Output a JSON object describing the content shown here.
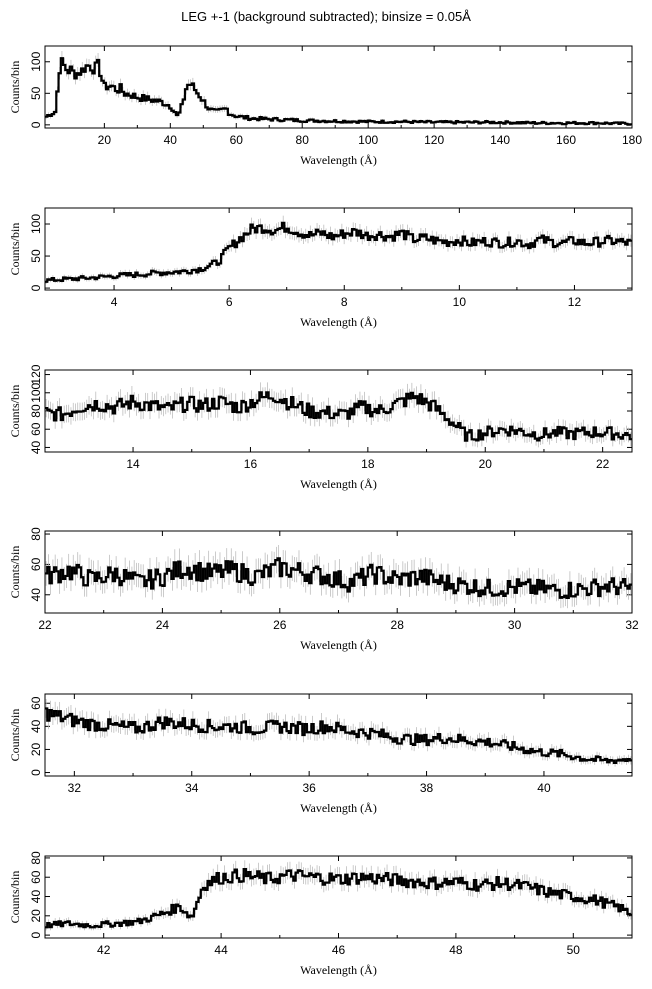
{
  "title": "LEG +-1 (background subtracted); binsize = 0.05Å",
  "chart_data": [
    {
      "type": "line",
      "xlabel": "Wavelength (Å)",
      "ylabel": "Counts/bin",
      "xlim": [
        2,
        180
      ],
      "ylim": [
        -5,
        125
      ],
      "xticks": [
        20,
        40,
        60,
        80,
        100,
        120,
        140,
        160,
        180
      ],
      "yticks": [
        0,
        50,
        100
      ],
      "series": [
        {
          "x": [
            2,
            4,
            5.5,
            6,
            7,
            8,
            9,
            10,
            11,
            12,
            13,
            14,
            15,
            16,
            17,
            18,
            19,
            20,
            22,
            24,
            25,
            26,
            28,
            30,
            32,
            34,
            36,
            38,
            40,
            41,
            42,
            43,
            44,
            45,
            46,
            47,
            48,
            49,
            50,
            52,
            54,
            55,
            56,
            57,
            58,
            60,
            62,
            65,
            70,
            75,
            80,
            90,
            100,
            110,
            120,
            130,
            140,
            150,
            160,
            170,
            175,
            178,
            180
          ],
          "y": [
            12,
            18,
            22,
            80,
            100,
            92,
            85,
            88,
            80,
            82,
            85,
            90,
            95,
            92,
            88,
            96,
            80,
            60,
            62,
            55,
            58,
            50,
            48,
            44,
            42,
            40,
            38,
            35,
            30,
            25,
            14,
            20,
            40,
            62,
            65,
            60,
            52,
            46,
            38,
            24,
            20,
            22,
            24,
            26,
            18,
            14,
            12,
            10,
            9,
            8,
            7,
            6,
            5,
            5,
            4,
            4,
            4,
            3,
            3,
            3,
            2,
            2,
            2
          ]
        }
      ]
    },
    {
      "type": "line",
      "xlabel": "Wavelength (Å)",
      "ylabel": "Counts/bin",
      "xlim": [
        2.8,
        13
      ],
      "ylim": [
        -3,
        125
      ],
      "xticks": [
        4,
        6,
        8,
        10,
        12
      ],
      "yticks": [
        0,
        50,
        100
      ],
      "series": [
        {
          "x": [
            2.8,
            3.2,
            3.6,
            4.0,
            4.4,
            4.8,
            5.2,
            5.5,
            5.8,
            6.0,
            6.2,
            6.4,
            6.6,
            6.8,
            7.0,
            7.2,
            7.4,
            7.6,
            7.8,
            8.0,
            8.2,
            8.4,
            8.6,
            8.8,
            9.0,
            9.2,
            9.4,
            9.6,
            9.8,
            10.0,
            10.2,
            10.4,
            10.6,
            10.8,
            11.0,
            11.2,
            11.4,
            11.6,
            11.8,
            12.0,
            12.2,
            12.4,
            12.6,
            12.8,
            13.0
          ],
          "y": [
            12,
            14,
            16,
            19,
            21,
            24,
            26,
            30,
            40,
            62,
            78,
            92,
            95,
            90,
            96,
            88,
            82,
            86,
            80,
            85,
            88,
            82,
            84,
            80,
            86,
            76,
            78,
            74,
            72,
            75,
            70,
            73,
            72,
            70,
            74,
            68,
            76,
            72,
            70,
            74,
            70,
            72,
            74,
            72,
            70
          ]
        }
      ]
    },
    {
      "type": "line",
      "xlabel": "Wavelength (Å)",
      "ylabel": "Counts/bin",
      "xlim": [
        12.5,
        22.5
      ],
      "ylim": [
        35,
        125
      ],
      "xticks": [
        14,
        16,
        18,
        20,
        22
      ],
      "yticks": [
        40,
        60,
        80,
        100,
        120
      ],
      "yticklabels": [
        "40",
        "60",
        "80",
        "100",
        "120"
      ],
      "series": [
        {
          "x": [
            12.5,
            12.8,
            13.1,
            13.4,
            13.7,
            14.0,
            14.3,
            14.6,
            14.9,
            15.2,
            15.5,
            15.8,
            16.1,
            16.4,
            16.7,
            17.0,
            17.3,
            17.6,
            17.9,
            18.2,
            18.5,
            18.8,
            19.1,
            19.4,
            19.7,
            20.0,
            20.3,
            20.6,
            20.9,
            21.2,
            21.5,
            21.8,
            22.1,
            22.5
          ],
          "y": [
            78,
            76,
            85,
            88,
            84,
            90,
            86,
            82,
            88,
            86,
            90,
            84,
            92,
            98,
            88,
            80,
            78,
            76,
            84,
            80,
            88,
            96,
            86,
            70,
            52,
            56,
            60,
            58,
            54,
            56,
            55,
            57,
            56,
            53
          ]
        }
      ]
    },
    {
      "type": "line",
      "xlabel": "Wavelength (Å)",
      "ylabel": "Counts/bin",
      "xlim": [
        22,
        32
      ],
      "ylim": [
        28,
        82
      ],
      "xticks": [
        22,
        24,
        26,
        28,
        30,
        32
      ],
      "yticks": [
        40,
        60,
        80
      ],
      "series": [
        {
          "x": [
            22,
            22.4,
            22.8,
            23.2,
            23.6,
            24.0,
            24.4,
            24.8,
            25.2,
            25.6,
            26.0,
            26.4,
            26.8,
            27.2,
            27.6,
            28.0,
            28.4,
            28.8,
            29.2,
            29.6,
            30.0,
            30.4,
            30.8,
            31.2,
            31.6,
            32.0
          ],
          "y": [
            52,
            56,
            50,
            54,
            48,
            52,
            58,
            54,
            56,
            52,
            58,
            55,
            52,
            48,
            54,
            50,
            52,
            48,
            46,
            44,
            45,
            44,
            43,
            44,
            46,
            44
          ]
        }
      ]
    },
    {
      "type": "line",
      "xlabel": "Wavelength (Å)",
      "ylabel": "Counts/bin",
      "xlim": [
        31.5,
        41.5
      ],
      "ylim": [
        -3,
        68
      ],
      "xticks": [
        32,
        34,
        36,
        38,
        40
      ],
      "yticks": [
        0,
        20,
        40,
        60
      ],
      "series": [
        {
          "x": [
            31.5,
            31.9,
            32.3,
            32.7,
            33.1,
            33.5,
            33.9,
            34.3,
            34.7,
            35.1,
            35.5,
            35.9,
            36.3,
            36.7,
            37.1,
            37.5,
            37.9,
            38.3,
            38.7,
            39.1,
            39.5,
            39.9,
            40.3,
            40.7,
            41.1,
            41.5
          ],
          "y": [
            52,
            46,
            42,
            40,
            38,
            44,
            42,
            40,
            40,
            38,
            40,
            38,
            40,
            36,
            34,
            30,
            28,
            30,
            28,
            26,
            22,
            18,
            16,
            12,
            10,
            12
          ]
        }
      ]
    },
    {
      "type": "line",
      "xlabel": "Wavelength (Å)",
      "ylabel": "Counts/bin",
      "xlim": [
        41,
        51
      ],
      "ylim": [
        -3,
        82
      ],
      "xticks": [
        42,
        44,
        46,
        48,
        50
      ],
      "yticks": [
        0,
        20,
        40,
        60,
        80
      ],
      "series": [
        {
          "x": [
            41.0,
            41.4,
            41.8,
            42.2,
            42.6,
            43.0,
            43.3,
            43.5,
            43.7,
            44.0,
            44.4,
            44.8,
            45.2,
            45.6,
            46.0,
            46.4,
            46.8,
            47.2,
            47.6,
            48.0,
            48.4,
            48.8,
            49.2,
            49.6,
            50.0,
            50.4,
            50.8,
            51.0
          ],
          "y": [
            10,
            12,
            10,
            12,
            14,
            22,
            30,
            18,
            52,
            60,
            62,
            58,
            62,
            60,
            58,
            60,
            58,
            56,
            54,
            55,
            52,
            54,
            50,
            44,
            40,
            36,
            28,
            22
          ]
        }
      ]
    }
  ]
}
